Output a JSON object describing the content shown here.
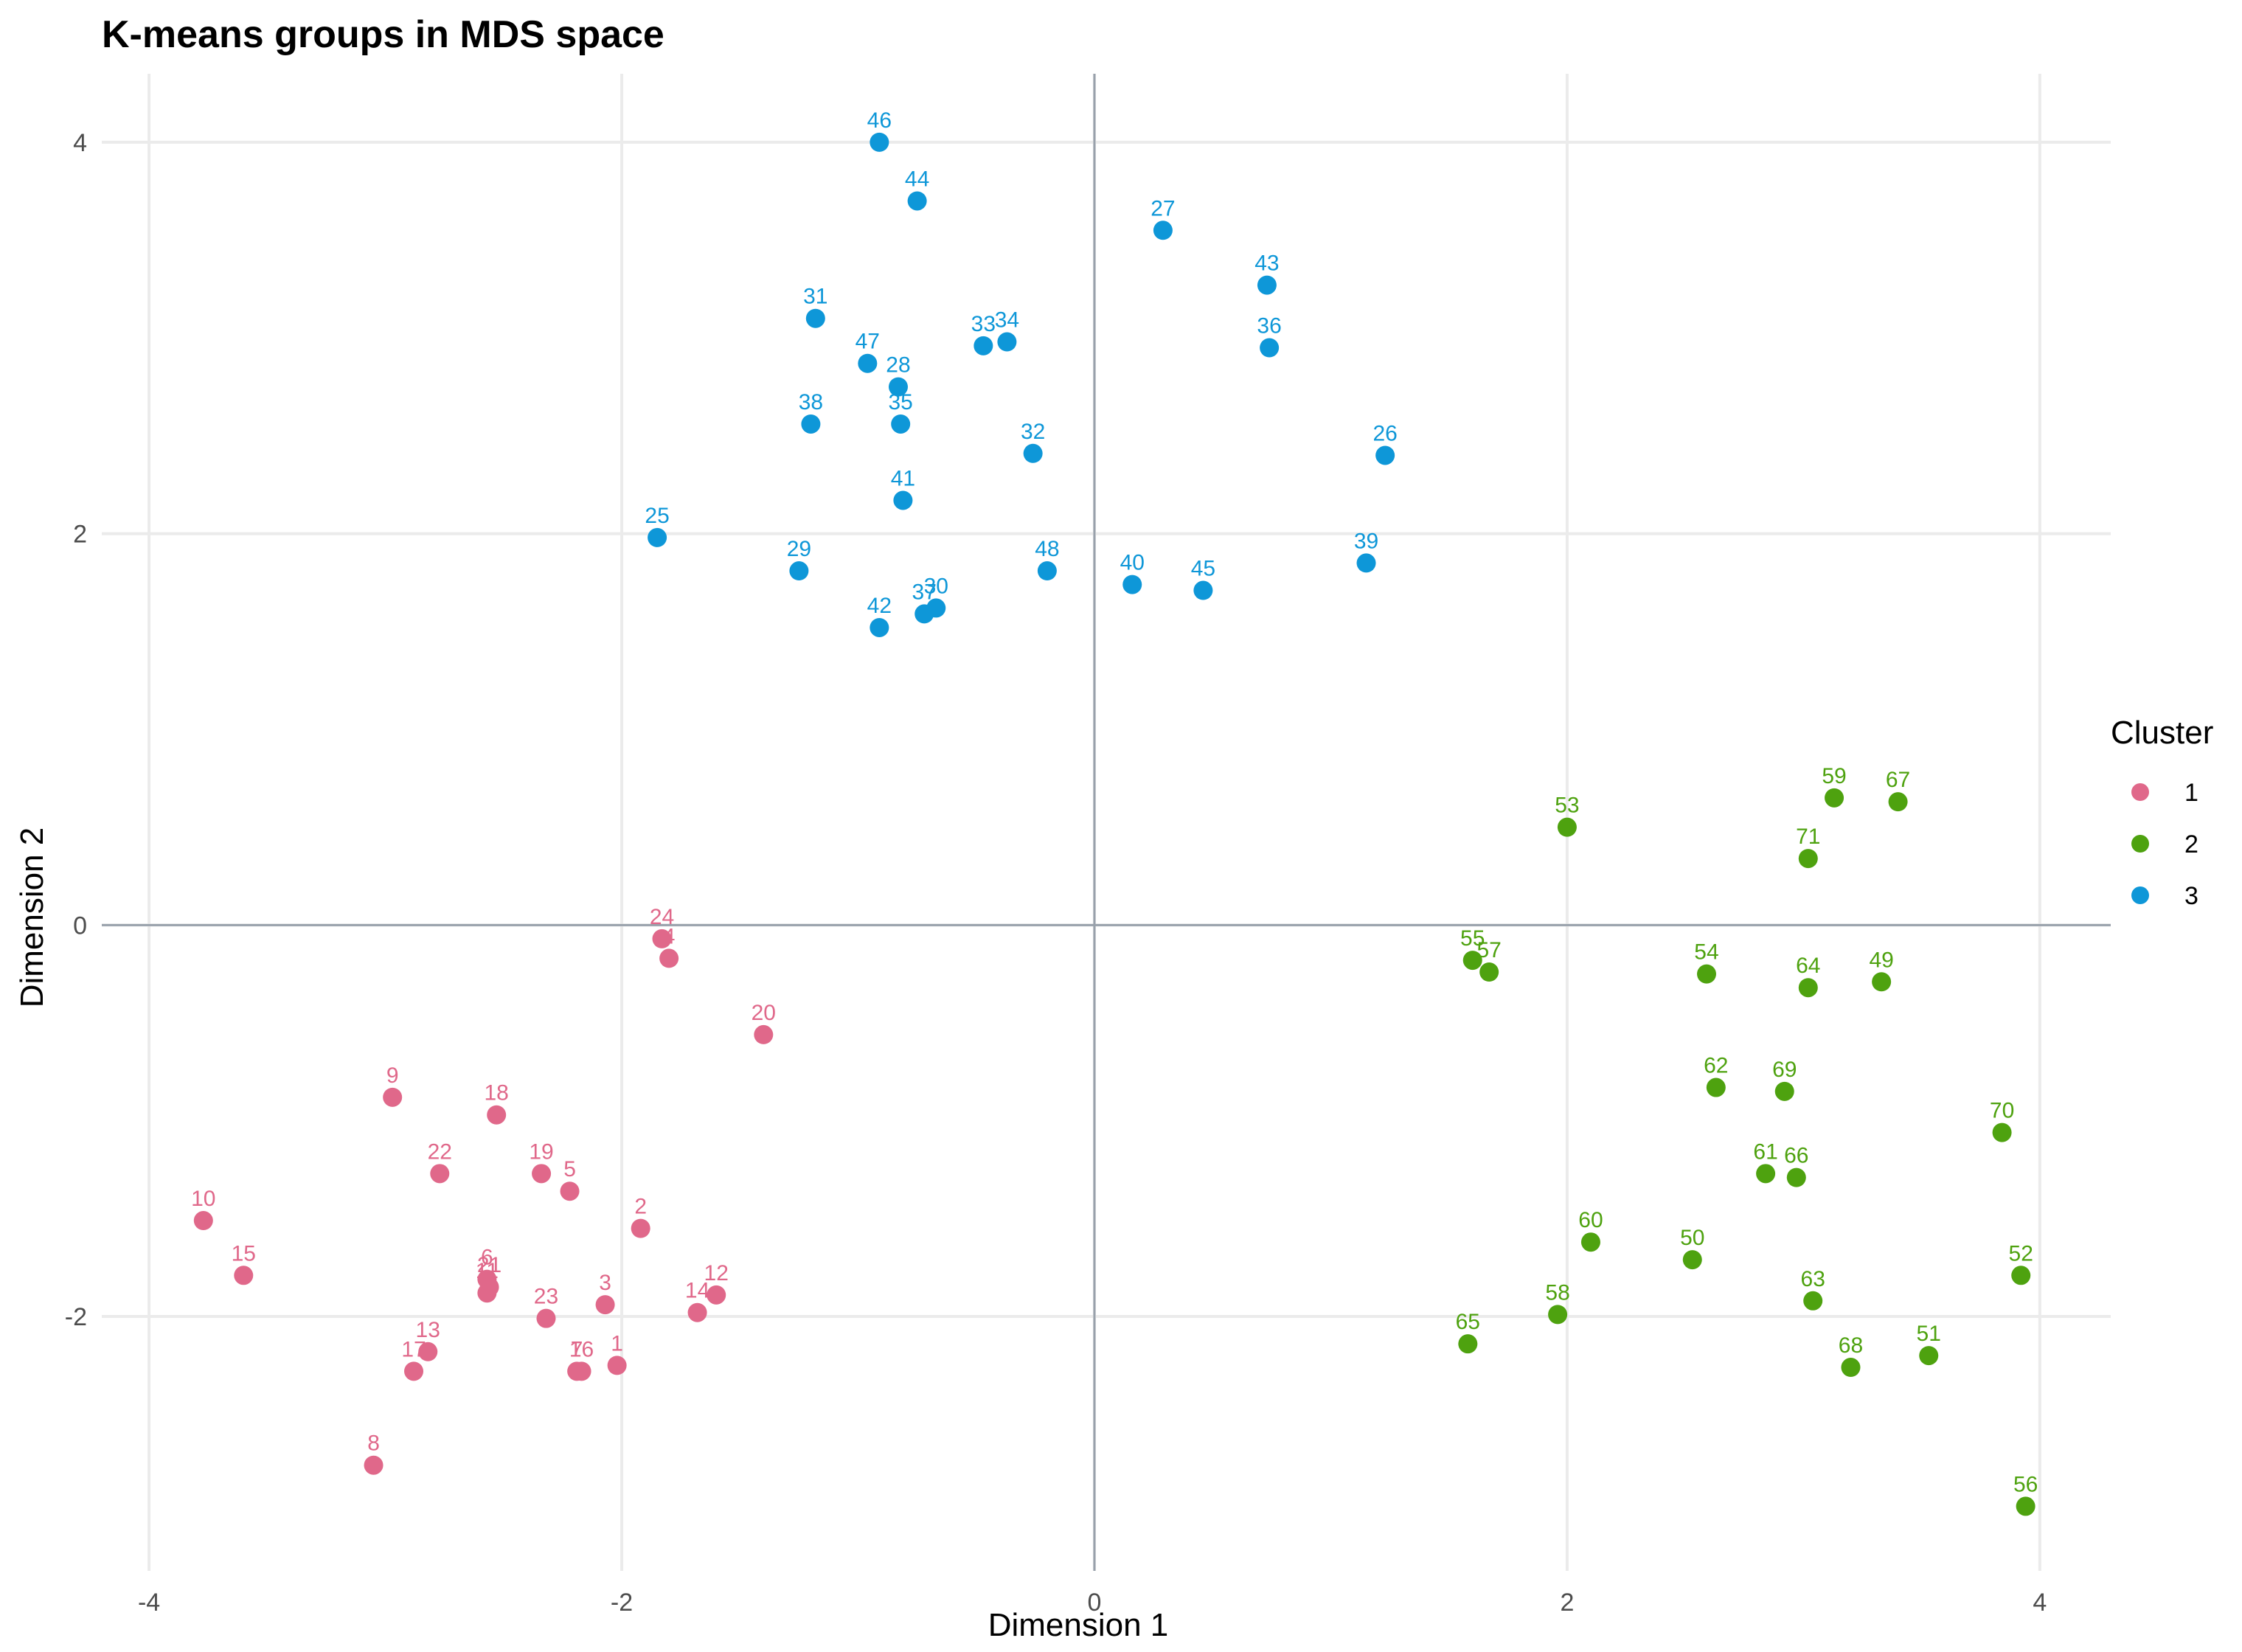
{
  "chart_data": {
    "type": "scatter",
    "title": "K-means groups in MDS space",
    "xlabel": "Dimension 1",
    "ylabel": "Dimension 2",
    "xlim": [
      -4.2,
      4.3
    ],
    "ylim": [
      -3.3,
      4.35
    ],
    "xticks": [
      -4,
      -2,
      0,
      2,
      4
    ],
    "yticks": [
      -2,
      0,
      2,
      4
    ],
    "xtick_labels": [
      "-4",
      "-2",
      "0",
      "2",
      "4"
    ],
    "ytick_labels": [
      "-2",
      "0",
      "2",
      "4"
    ],
    "grid": true,
    "reference_lines": {
      "x": 0,
      "y": 0
    },
    "legend": {
      "title": "Cluster",
      "position": "right"
    },
    "series": [
      {
        "name": "1",
        "color": "#e0688a",
        "points": [
          {
            "label": "1",
            "x": -2.02,
            "y": -2.25
          },
          {
            "label": "2",
            "x": -1.92,
            "y": -1.55
          },
          {
            "label": "3",
            "x": -2.07,
            "y": -1.94
          },
          {
            "label": "4",
            "x": -1.8,
            "y": -0.17
          },
          {
            "label": "5",
            "x": -2.22,
            "y": -1.36
          },
          {
            "label": "6",
            "x": -2.57,
            "y": -1.81
          },
          {
            "label": "7",
            "x": -2.19,
            "y": -2.28
          },
          {
            "label": "8",
            "x": -3.05,
            "y": -2.76
          },
          {
            "label": "9",
            "x": -2.97,
            "y": -0.88
          },
          {
            "label": "10",
            "x": -3.77,
            "y": -1.51
          },
          {
            "label": "11",
            "x": -2.57,
            "y": -1.88
          },
          {
            "label": "12",
            "x": -1.6,
            "y": -1.89
          },
          {
            "label": "13",
            "x": -2.82,
            "y": -2.18
          },
          {
            "label": "14",
            "x": -1.68,
            "y": -1.98
          },
          {
            "label": "15",
            "x": -3.6,
            "y": -1.79
          },
          {
            "label": "16",
            "x": -2.17,
            "y": -2.28
          },
          {
            "label": "17",
            "x": -2.88,
            "y": -2.28
          },
          {
            "label": "18",
            "x": -2.53,
            "y": -0.97
          },
          {
            "label": "19",
            "x": -2.34,
            "y": -1.27
          },
          {
            "label": "20",
            "x": -1.4,
            "y": -0.56
          },
          {
            "label": "21",
            "x": -2.56,
            "y": -1.85
          },
          {
            "label": "22",
            "x": -2.77,
            "y": -1.27
          },
          {
            "label": "23",
            "x": -2.32,
            "y": -2.01
          },
          {
            "label": "24",
            "x": -1.83,
            "y": -0.07
          }
        ]
      },
      {
        "name": "2",
        "color": "#4ea20f",
        "points": [
          {
            "label": "49",
            "x": 3.33,
            "y": -0.29
          },
          {
            "label": "50",
            "x": 2.53,
            "y": -1.71
          },
          {
            "label": "51",
            "x": 3.53,
            "y": -2.2
          },
          {
            "label": "52",
            "x": 3.92,
            "y": -1.79
          },
          {
            "label": "53",
            "x": 2.0,
            "y": 0.5
          },
          {
            "label": "54",
            "x": 2.59,
            "y": -0.25
          },
          {
            "label": "55",
            "x": 1.6,
            "y": -0.18
          },
          {
            "label": "56",
            "x": 3.94,
            "y": -2.97
          },
          {
            "label": "57",
            "x": 1.67,
            "y": -0.24
          },
          {
            "label": "58",
            "x": 1.96,
            "y": -1.99
          },
          {
            "label": "59",
            "x": 3.13,
            "y": 0.65
          },
          {
            "label": "60",
            "x": 2.1,
            "y": -1.62
          },
          {
            "label": "61",
            "x": 2.84,
            "y": -1.27
          },
          {
            "label": "62",
            "x": 2.63,
            "y": -0.83
          },
          {
            "label": "63",
            "x": 3.04,
            "y": -1.92
          },
          {
            "label": "64",
            "x": 3.02,
            "y": -0.32
          },
          {
            "label": "65",
            "x": 1.58,
            "y": -2.14
          },
          {
            "label": "66",
            "x": 2.97,
            "y": -1.29
          },
          {
            "label": "67",
            "x": 3.4,
            "y": 0.63
          },
          {
            "label": "68",
            "x": 3.2,
            "y": -2.26
          },
          {
            "label": "69",
            "x": 2.92,
            "y": -0.85
          },
          {
            "label": "70",
            "x": 3.84,
            "y": -1.06
          },
          {
            "label": "71",
            "x": 3.02,
            "y": 0.34
          }
        ]
      },
      {
        "name": "3",
        "color": "#0e97d8",
        "points": [
          {
            "label": "25",
            "x": -1.85,
            "y": 1.98
          },
          {
            "label": "26",
            "x": 1.23,
            "y": 2.4
          },
          {
            "label": "27",
            "x": 0.29,
            "y": 3.55
          },
          {
            "label": "28",
            "x": -0.83,
            "y": 2.75
          },
          {
            "label": "29",
            "x": -1.25,
            "y": 1.81
          },
          {
            "label": "30",
            "x": -0.67,
            "y": 1.62
          },
          {
            "label": "31",
            "x": -1.18,
            "y": 3.1
          },
          {
            "label": "32",
            "x": -0.26,
            "y": 2.41
          },
          {
            "label": "33",
            "x": -0.47,
            "y": 2.96
          },
          {
            "label": "34",
            "x": -0.37,
            "y": 2.98
          },
          {
            "label": "35",
            "x": -0.82,
            "y": 2.56
          },
          {
            "label": "36",
            "x": 0.74,
            "y": 2.95
          },
          {
            "label": "37",
            "x": -0.72,
            "y": 1.59
          },
          {
            "label": "38",
            "x": -1.2,
            "y": 2.56
          },
          {
            "label": "39",
            "x": 1.15,
            "y": 1.85
          },
          {
            "label": "40",
            "x": 0.16,
            "y": 1.74
          },
          {
            "label": "41",
            "x": -0.81,
            "y": 2.17
          },
          {
            "label": "42",
            "x": -0.91,
            "y": 1.52
          },
          {
            "label": "43",
            "x": 0.73,
            "y": 3.27
          },
          {
            "label": "44",
            "x": -0.75,
            "y": 3.7
          },
          {
            "label": "45",
            "x": 0.46,
            "y": 1.71
          },
          {
            "label": "46",
            "x": -0.91,
            "y": 4.0
          },
          {
            "label": "47",
            "x": -0.96,
            "y": 2.87
          },
          {
            "label": "48",
            "x": -0.2,
            "y": 1.81
          }
        ]
      }
    ]
  }
}
